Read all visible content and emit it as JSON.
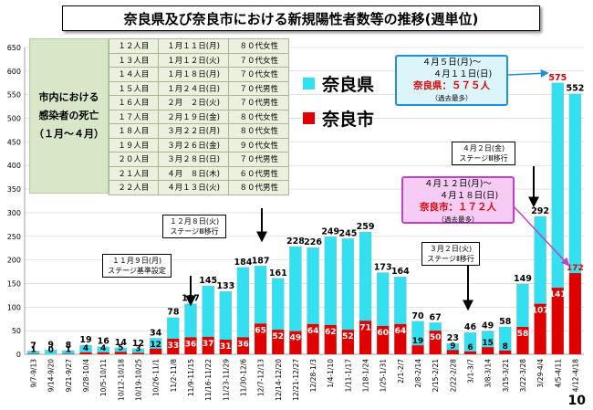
{
  "title": "奈良県及び奈良市における新規陽性者数等の推移(週単位)",
  "page_number": "10",
  "death_table": {
    "label_lines": [
      "市内における",
      "感染者の死亡",
      "（１月～４月）"
    ],
    "rows": [
      [
        "１２人目",
        "１月１１日(月)",
        "８０代女性"
      ],
      [
        "１３人目",
        "１月１２日(火)",
        "７０代女性"
      ],
      [
        "１４人目",
        "１月１８日(月)",
        "７０代女性"
      ],
      [
        "１５人目",
        "１月２４日(日)",
        "７０代男性"
      ],
      [
        "１６人目",
        "２月　２日(火)",
        "７０代男性"
      ],
      [
        "１７人目",
        "２月１９日(金)",
        "８０代女性"
      ],
      [
        "１８人目",
        "３月２２日(月)",
        "８０代女性"
      ],
      [
        "１９人目",
        "３月２６日(金)",
        "９０代女性"
      ],
      [
        "２０人目",
        "３月２８日(日)",
        "７０代男性"
      ],
      [
        "２１人目",
        "４月　８日(木)",
        "６０代男性"
      ],
      [
        "２２人目",
        "４月１３日(火)",
        "８０代男性"
      ]
    ]
  },
  "legend": {
    "pref": "奈良県",
    "city": "奈良市"
  },
  "callouts": {
    "stage_setting": [
      "１１月９日(月)",
      "ステージ基準設定"
    ],
    "stage3_dec": [
      "１２月８日(火)",
      "ステージⅢ移行"
    ],
    "stage2_mar": [
      "３月２日(火)",
      "ステージⅡ移行"
    ],
    "stage3_apr": [
      "４月２日(金)",
      "ステージⅢ移行"
    ],
    "pref_peak": {
      "line1": "４月５日(月)～",
      "line2": "４月１１日(日)",
      "highlight": "奈良県：５７５人",
      "note": "（過去最多）"
    },
    "city_peak": {
      "line1": "４月１２日(月)～",
      "line2": "４月１８日(日)",
      "highlight": "奈良市：１７２人",
      "note": "（過去最多）"
    }
  },
  "colors": {
    "pref": "#33e0f0",
    "city": "#e00000",
    "grid": "#d0d0d0"
  },
  "chart_data": {
    "type": "bar",
    "categories": [
      "9/7-9/13",
      "9/14-9/20",
      "9/21-9/27",
      "9/28-10/4",
      "10/5-10/11",
      "10/12-10/18",
      "10/19-10/25",
      "10/26-11/1",
      "11/2-11/8",
      "11/9-11/15",
      "11/16-11/22",
      "11/23-11/29",
      "11/30-12/6",
      "12/7-12/13",
      "12/14-12/20",
      "12/21-12/27",
      "12/28-1/3",
      "1/4-1/10",
      "1/11-1/17",
      "1/18-1/24",
      "1/25-1/31",
      "2/1-2/7",
      "2/8-2/14",
      "2/15-2/21",
      "2/22-2/28",
      "3/1-3/7",
      "3/8-3/14",
      "3/15-3/21",
      "3/22-3/28",
      "3/29-4/4",
      "4/5-4/11",
      "4/12-4/18"
    ],
    "series": [
      {
        "name": "奈良県",
        "values": [
          7,
          9,
          8,
          19,
          16,
          14,
          12,
          34,
          78,
          107,
          145,
          133,
          184,
          187,
          161,
          228,
          226,
          249,
          245,
          259,
          173,
          164,
          70,
          67,
          23,
          46,
          49,
          58,
          149,
          292,
          575,
          552
        ]
      },
      {
        "name": "奈良市",
        "values": [
          1,
          0,
          1,
          4,
          4,
          5,
          3,
          12,
          33,
          36,
          37,
          31,
          36,
          65,
          52,
          49,
          64,
          62,
          52,
          71,
          60,
          64,
          19,
          50,
          9,
          6,
          15,
          8,
          58,
          107,
          141,
          172
        ]
      }
    ],
    "ylim": [
      0,
      650
    ],
    "yticks": [
      0,
      50,
      100,
      150,
      200,
      250,
      300,
      350,
      400,
      450,
      500,
      550,
      600,
      650
    ],
    "grid": true,
    "legend_position": "top-right"
  }
}
